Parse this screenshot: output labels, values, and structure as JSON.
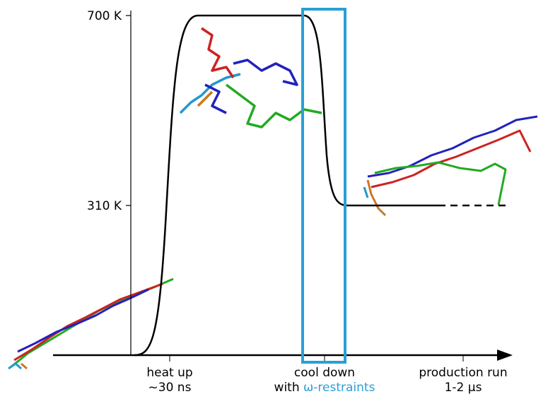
{
  "y_axis": {
    "ticks": [
      "700 K",
      "310 K"
    ]
  },
  "phases": [
    {
      "lines": [
        "heat up",
        "~30 ns"
      ]
    },
    {
      "lines": [
        "cool down"
      ],
      "prefix": "with ",
      "highlight": "ω-restraints"
    },
    {
      "lines": [
        "production run",
        "1-2 µs"
      ]
    }
  ]
}
